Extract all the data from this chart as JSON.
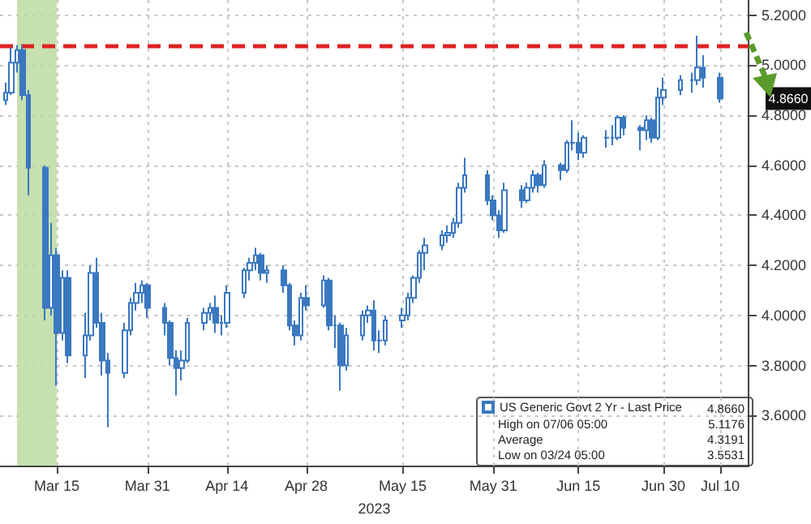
{
  "chart_data": {
    "type": "candlestick",
    "xlabel": "2023",
    "x": [
      "2023-03-06",
      "2023-03-07",
      "2023-03-08",
      "2023-03-09",
      "2023-03-10",
      "2023-03-13",
      "2023-03-14",
      "2023-03-15",
      "2023-03-16",
      "2023-03-17",
      "2023-03-20",
      "2023-03-21",
      "2023-03-22",
      "2023-03-23",
      "2023-03-24",
      "2023-03-27",
      "2023-03-28",
      "2023-03-29",
      "2023-03-30",
      "2023-03-31",
      "2023-04-03",
      "2023-04-04",
      "2023-04-05",
      "2023-04-06",
      "2023-04-07",
      "2023-04-10",
      "2023-04-11",
      "2023-04-12",
      "2023-04-13",
      "2023-04-14",
      "2023-04-17",
      "2023-04-18",
      "2023-04-19",
      "2023-04-20",
      "2023-04-21",
      "2023-04-24",
      "2023-04-25",
      "2023-04-26",
      "2023-04-27",
      "2023-04-28",
      "2023-05-01",
      "2023-05-02",
      "2023-05-03",
      "2023-05-04",
      "2023-05-05",
      "2023-05-08",
      "2023-05-09",
      "2023-05-10",
      "2023-05-11",
      "2023-05-12",
      "2023-05-15",
      "2023-05-16",
      "2023-05-17",
      "2023-05-18",
      "2023-05-19",
      "2023-05-22",
      "2023-05-23",
      "2023-05-24",
      "2023-05-25",
      "2023-05-26",
      "2023-05-30",
      "2023-05-31",
      "2023-06-01",
      "2023-06-02",
      "2023-06-05",
      "2023-06-06",
      "2023-06-07",
      "2023-06-08",
      "2023-06-09",
      "2023-06-12",
      "2023-06-13",
      "2023-06-14",
      "2023-06-15",
      "2023-06-16",
      "2023-06-20",
      "2023-06-21",
      "2023-06-22",
      "2023-06-23",
      "2023-06-26",
      "2023-06-27",
      "2023-06-28",
      "2023-06-29",
      "2023-06-30",
      "2023-07-03",
      "2023-07-05",
      "2023-07-06",
      "2023-07-07",
      "2023-07-10"
    ],
    "series": [
      {
        "name": "US Generic Govt 2 Yr - Last Price",
        "color": "#3a78c0",
        "ohlc": [
          [
            4.86,
            4.93,
            4.84,
            4.89
          ],
          [
            4.89,
            5.07,
            4.88,
            5.01
          ],
          [
            5.01,
            5.08,
            4.97,
            5.06
          ],
          [
            5.06,
            5.08,
            4.86,
            4.88
          ],
          [
            4.88,
            4.9,
            4.48,
            4.59
          ],
          [
            4.59,
            4.6,
            3.98,
            4.03
          ],
          [
            4.03,
            4.37,
            4.0,
            4.24
          ],
          [
            4.24,
            4.27,
            3.72,
            3.93
          ],
          [
            3.93,
            4.18,
            3.9,
            4.15
          ],
          [
            4.15,
            4.18,
            3.81,
            3.84
          ],
          [
            3.84,
            4.01,
            3.75,
            3.92
          ],
          [
            3.92,
            4.2,
            3.9,
            4.17
          ],
          [
            4.17,
            4.23,
            3.95,
            3.97
          ],
          [
            3.97,
            4.01,
            3.76,
            3.82
          ],
          [
            3.82,
            3.85,
            3.5531,
            3.77
          ],
          [
            3.77,
            3.97,
            3.75,
            3.94
          ],
          [
            3.94,
            4.07,
            3.92,
            4.05
          ],
          [
            4.05,
            4.13,
            4.02,
            4.09
          ],
          [
            4.09,
            4.14,
            4.05,
            4.12
          ],
          [
            4.12,
            4.13,
            3.99,
            4.03
          ],
          [
            4.03,
            4.05,
            3.92,
            3.97
          ],
          [
            3.97,
            3.98,
            3.8,
            3.83
          ],
          [
            3.83,
            3.86,
            3.68,
            3.79
          ],
          [
            3.79,
            3.86,
            3.74,
            3.82
          ],
          [
            3.82,
            3.99,
            3.81,
            3.97
          ],
          [
            3.97,
            4.03,
            3.94,
            4.01
          ],
          [
            4.01,
            4.05,
            3.98,
            4.03
          ],
          [
            4.03,
            4.08,
            3.93,
            3.97
          ],
          [
            3.97,
            4.0,
            3.92,
            3.97
          ],
          [
            3.97,
            4.12,
            3.95,
            4.09
          ],
          [
            4.09,
            4.19,
            4.07,
            4.18
          ],
          [
            4.18,
            4.23,
            4.14,
            4.21
          ],
          [
            4.21,
            4.27,
            4.18,
            4.24
          ],
          [
            4.24,
            4.25,
            4.14,
            4.17
          ],
          [
            4.17,
            4.2,
            4.13,
            4.18
          ],
          [
            4.18,
            4.2,
            4.09,
            4.12
          ],
          [
            4.12,
            4.13,
            3.94,
            3.96
          ],
          [
            3.96,
            3.98,
            3.88,
            3.92
          ],
          [
            3.92,
            4.09,
            3.9,
            4.07
          ],
          [
            4.07,
            4.12,
            4.02,
            4.04
          ],
          [
            4.04,
            4.16,
            4.03,
            4.14
          ],
          [
            4.14,
            4.15,
            3.94,
            3.96
          ],
          [
            3.96,
            4.0,
            3.87,
            3.96
          ],
          [
            3.96,
            3.97,
            3.7,
            3.8
          ],
          [
            3.8,
            3.95,
            3.78,
            3.92
          ],
          [
            3.92,
            4.02,
            3.9,
            4.0
          ],
          [
            4.0,
            4.04,
            3.97,
            4.02
          ],
          [
            4.02,
            4.06,
            3.86,
            3.9
          ],
          [
            3.9,
            3.94,
            3.85,
            3.9
          ],
          [
            3.9,
            4.0,
            3.88,
            3.98
          ],
          [
            3.98,
            4.03,
            3.95,
            4.0
          ],
          [
            4.0,
            4.09,
            3.98,
            4.07
          ],
          [
            4.07,
            4.16,
            4.05,
            4.15
          ],
          [
            4.15,
            4.26,
            4.13,
            4.25
          ],
          [
            4.25,
            4.31,
            4.18,
            4.28
          ],
          [
            4.28,
            4.34,
            4.26,
            4.32
          ],
          [
            4.32,
            4.36,
            4.29,
            4.33
          ],
          [
            4.33,
            4.39,
            4.31,
            4.37
          ],
          [
            4.37,
            4.53,
            4.35,
            4.51
          ],
          [
            4.51,
            4.63,
            4.49,
            4.56
          ],
          [
            4.56,
            4.58,
            4.44,
            4.46
          ],
          [
            4.46,
            4.48,
            4.38,
            4.4
          ],
          [
            4.4,
            4.42,
            4.31,
            4.34
          ],
          [
            4.34,
            4.53,
            4.33,
            4.5
          ],
          [
            4.5,
            4.52,
            4.43,
            4.46
          ],
          [
            4.46,
            4.53,
            4.45,
            4.51
          ],
          [
            4.51,
            4.58,
            4.49,
            4.56
          ],
          [
            4.56,
            4.57,
            4.49,
            4.52
          ],
          [
            4.52,
            4.62,
            4.51,
            4.6
          ],
          [
            4.6,
            4.61,
            4.54,
            4.58
          ],
          [
            4.58,
            4.7,
            4.57,
            4.69
          ],
          [
            4.69,
            4.78,
            4.66,
            4.69
          ],
          [
            4.69,
            4.73,
            4.62,
            4.65
          ],
          [
            4.65,
            4.72,
            4.63,
            4.71
          ],
          [
            4.71,
            4.74,
            4.67,
            4.71
          ],
          [
            4.71,
            4.76,
            4.68,
            4.71
          ],
          [
            4.71,
            4.8,
            4.7,
            4.79
          ],
          [
            4.79,
            4.8,
            4.72,
            4.75
          ],
          [
            4.75,
            4.76,
            4.66,
            4.74
          ],
          [
            4.74,
            4.8,
            4.7,
            4.78
          ],
          [
            4.78,
            4.79,
            4.69,
            4.71
          ],
          [
            4.71,
            4.91,
            4.7,
            4.87
          ],
          [
            4.87,
            4.95,
            4.84,
            4.9
          ],
          [
            4.9,
            4.96,
            4.88,
            4.94
          ],
          [
            4.94,
            4.97,
            4.89,
            4.94
          ],
          [
            4.94,
            5.1176,
            4.92,
            4.99
          ],
          [
            4.99,
            5.04,
            4.91,
            4.95
          ],
          [
            4.95,
            4.97,
            4.85,
            4.866
          ]
        ]
      }
    ],
    "xlim": [
      "2023-03-05",
      "2023-07-15"
    ],
    "xticks": [
      {
        "value": "2023-03-15",
        "label": "Mar 15"
      },
      {
        "value": "2023-03-31",
        "label": "Mar 31"
      },
      {
        "value": "2023-04-14",
        "label": "Apr 14"
      },
      {
        "value": "2023-04-28",
        "label": "Apr 28"
      },
      {
        "value": "2023-05-15",
        "label": "May 15"
      },
      {
        "value": "2023-05-31",
        "label": "May 31"
      },
      {
        "value": "2023-06-15",
        "label": "Jun 15"
      },
      {
        "value": "2023-06-30",
        "label": "Jun 30"
      },
      {
        "value": "2023-07-10",
        "label": "Jul 10"
      }
    ],
    "ylim": [
      3.4,
      5.26
    ],
    "yticks": [
      {
        "value": 3.6,
        "label": "3.6000"
      },
      {
        "value": 3.8,
        "label": "3.8000"
      },
      {
        "value": 4.0,
        "label": "4.0000"
      },
      {
        "value": 4.2,
        "label": "4.2000"
      },
      {
        "value": 4.4,
        "label": "4.4000"
      },
      {
        "value": 4.6,
        "label": "4.6000"
      },
      {
        "value": 4.8,
        "label": "4.8000"
      },
      {
        "value": 5.0,
        "label": "5.0000"
      },
      {
        "value": 5.2,
        "label": "5.2000"
      }
    ],
    "ref_lines": [
      {
        "axis": "y",
        "value": 5.08,
        "color": "#dd2222",
        "line_style": "dashed"
      }
    ],
    "bands": [
      {
        "axis": "x",
        "from": "2023-03-08",
        "to": "2023-03-15",
        "color": "#b9d89c"
      }
    ],
    "annotations": [
      "4.8660",
      "High on 07/06 05:00",
      "5.1176",
      "Average",
      "4.3191",
      "Low on 03/24 05:00",
      "3.5531",
      "4.8660"
    ],
    "grid": true,
    "legend": "bottom right"
  }
}
